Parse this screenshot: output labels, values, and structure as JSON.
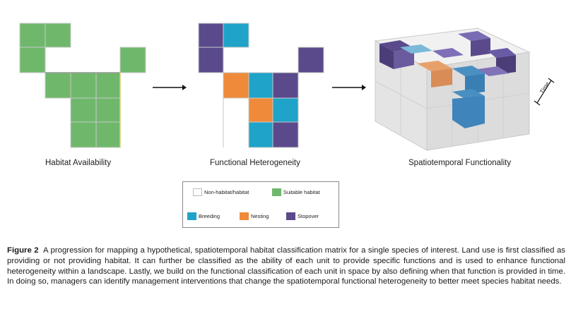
{
  "panels": {
    "habitat_availability": "Habitat Availability",
    "functional_heterogeneity": "Functional Heterogeneity",
    "spatiotemporal_functionality": "Spatiotemporal Functionality"
  },
  "time_axis_label": "Time",
  "legend": {
    "non_habitat": "Non-habitat/habitat",
    "suitable_habitat": "Suitable habitat",
    "breeding": "Breeding",
    "nesting": "Nesting",
    "stopover": "Stopover"
  },
  "colors": {
    "habitat_green": "#6fb86b",
    "breeding_blue": "#1fa3c8",
    "nesting_orange": "#ef8a3a",
    "stopover_purple": "#5a4a8c"
  },
  "caption": {
    "label": "Figure 2",
    "text": "A progression for mapping a hypothetical, spatiotemporal habitat classification matrix for a single species of interest. Land use is first classified as providing or not providing habitat. It can further be classified as the ability of each unit to provide specific functions and is used to enhance functional heterogeneity within a landscape. Lastly, we build on the functional classification of each unit in space by also defining when that function is provided in time. In doing so, managers can identify management interventions that change the spatiotemporal functional heterogeneity to better meet species habitat needs."
  }
}
